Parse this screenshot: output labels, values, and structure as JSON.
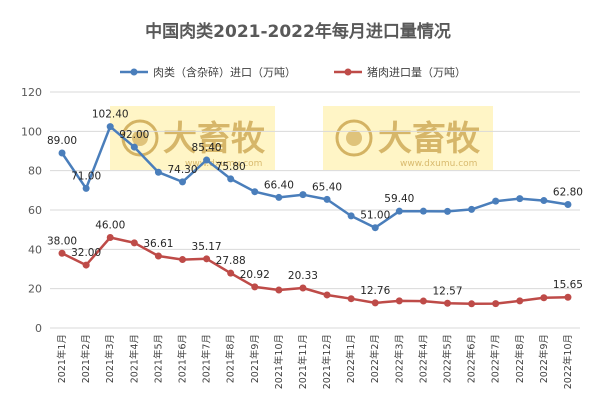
{
  "chart_data": {
    "type": "line",
    "title": "中国肉类2021-2022年每月进口量情况",
    "xlabel": "",
    "ylabel": "",
    "ylim": [
      0,
      120
    ],
    "yticks": [
      0,
      20,
      40,
      60,
      80,
      100,
      120
    ],
    "grid": true,
    "legend_position": "top",
    "categories": [
      "2021年1月",
      "2021年2月",
      "2021年3月",
      "2021年4月",
      "2021年5月",
      "2021年6月",
      "2021年7月",
      "2021年8月",
      "2021年9月",
      "2021年10月",
      "2021年11月",
      "2021年12月",
      "2022年1月",
      "2022年2月",
      "2022年3月",
      "2022年4月",
      "2022年5月",
      "2022年6月",
      "2022年7月",
      "2022年8月",
      "2022年9月",
      "2022年10月"
    ],
    "series": [
      {
        "name": "肉类（含杂碎）进口（万吨）",
        "color": "#4a7ebb",
        "values": [
          89.0,
          71.0,
          102.4,
          92.0,
          79.2,
          74.3,
          85.4,
          75.8,
          69.3,
          66.4,
          67.8,
          65.4,
          57.0,
          51.0,
          59.4,
          59.4,
          59.3,
          60.3,
          64.5,
          65.8,
          64.8,
          62.8
        ],
        "labels": [
          "89.00",
          "71.00",
          "102.40",
          "92.00",
          "",
          "74.30",
          "85.40",
          "75.80",
          "",
          "66.40",
          "",
          "65.40",
          "",
          "51.00",
          "59.40",
          "",
          "",
          "",
          "",
          "",
          "",
          "62.80"
        ]
      },
      {
        "name": "猪肉进口量（万吨）",
        "color": "#be4b48",
        "values": [
          38.0,
          32.0,
          46.0,
          43.3,
          36.61,
          34.8,
          35.17,
          27.88,
          20.92,
          19.3,
          20.33,
          16.8,
          14.9,
          12.76,
          13.8,
          13.7,
          12.57,
          12.3,
          12.4,
          13.8,
          15.4,
          15.65
        ],
        "labels": [
          "38.00",
          "32.00",
          "46.00",
          "",
          "36.61",
          "",
          "35.17",
          "27.88",
          "20.92",
          "",
          "20.33",
          "",
          "",
          "12.76",
          "",
          "",
          "12.57",
          "",
          "",
          "",
          "",
          "15.65"
        ]
      }
    ]
  },
  "watermark": {
    "brand": "大畜牧",
    "url": "www.dxumu.com"
  }
}
